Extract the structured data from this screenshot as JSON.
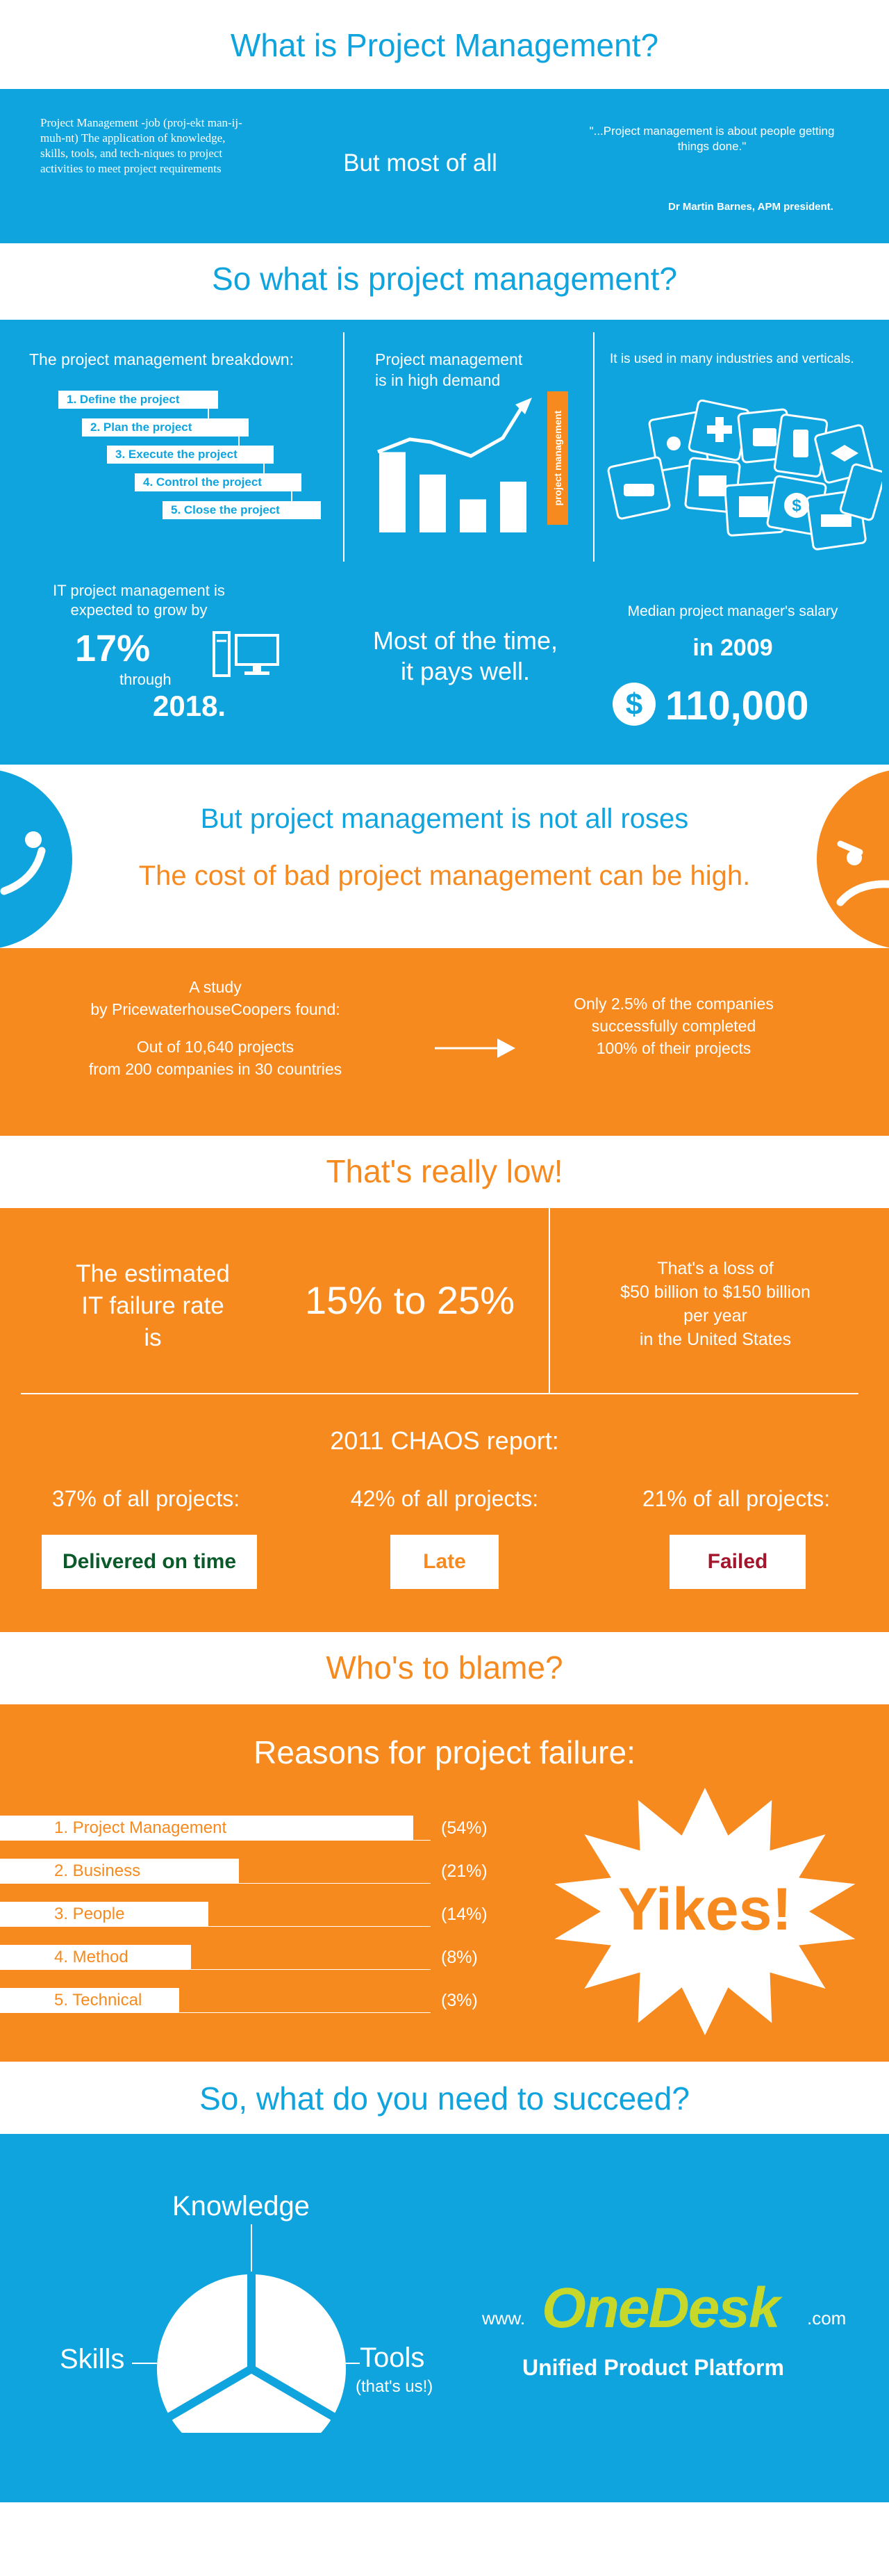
{
  "s1": {
    "title": "What is Project Management?",
    "definition": "Project Management -job (proj-ekt man-ij-muh-nt) The application of knowledge, skills, tools, and tech-niques to project activities to meet project requirements",
    "middle": "But most of all",
    "quote": "\"...Project management is about people getting things done.\"",
    "author": "Dr Martin Barnes, APM president."
  },
  "s2": {
    "title": "So what is project management?",
    "breakdown_heading": "The project management breakdown:",
    "steps": [
      "1. Define the project",
      "2. Plan the project",
      "3. Execute the project",
      "4. Control the project",
      "5. Close the project"
    ],
    "demand_line1": "Project management",
    "demand_line2": "is in high demand",
    "demand_tag": "project management",
    "demand_bars": [
      0.68,
      0.49,
      0.28,
      0.43
    ],
    "industries": "It is used in many industries and verticals.",
    "grow_line1": "IT project management is",
    "grow_line2": "expected to grow by",
    "grow_pct": "17%",
    "through": "through",
    "year": "2018.",
    "pays_line1": "Most of the time,",
    "pays_line2": "it pays well.",
    "salary_label": "Median project manager's salary",
    "salary_year": "in 2009",
    "salary_amount": "110,000"
  },
  "s3": {
    "heading": "But project management is not all roses",
    "sub": "The cost of bad project management can be high.",
    "study_line1": "A study",
    "study_line2": "by PricewaterhouseCoopers found:",
    "projects_line1": "Out of 10,640 projects",
    "projects_line2": "from 200 companies in 30 countries",
    "result_line1": "Only 2.5% of the companies",
    "result_line2": "successfully completed",
    "result_line3": "100% of their projects"
  },
  "s4": {
    "title": "That's really low!",
    "estimated_line1": "The estimated",
    "estimated_line2": "IT failure rate",
    "estimated_line3": "is",
    "rate": "15% to 25%",
    "loss_line1": "That's a loss of",
    "loss_line2": "$50 billion to $150 billion",
    "loss_line3": "per year",
    "loss_line4": "in the United States",
    "chaos_title": "2011 CHAOS report:",
    "chaos": [
      {
        "head": "37% of all projects:",
        "label": "Delivered on time",
        "color": "#0b5a2a"
      },
      {
        "head": "42% of all projects:",
        "label": "Late",
        "color": "#f68a1f"
      },
      {
        "head": "21% of all projects:",
        "label": "Failed",
        "color": "#a4162c"
      }
    ]
  },
  "s5": {
    "title": "Who's to blame?",
    "heading": "Reasons for project failure:",
    "reasons": [
      {
        "label": "1. Project Management",
        "pct": "(54%)",
        "value": 54
      },
      {
        "label": "2. Business",
        "pct": "(21%)",
        "value": 21
      },
      {
        "label": "3. People",
        "pct": "(14%)",
        "value": 14
      },
      {
        "label": "4. Method",
        "pct": "(8%)",
        "value": 8
      },
      {
        "label": "5. Technical",
        "pct": "(3%)",
        "value": 3
      }
    ],
    "yikes": "Yikes!"
  },
  "s6": {
    "title": "So, what do you need to succeed?",
    "knowledge": "Knowledge",
    "skills": "Skills",
    "tools": "Tools",
    "tools_note": "(that's us!)",
    "www": "www.",
    "brand": "OneDesk",
    "dotcom": ".com",
    "tagline": "Unified Product Platform"
  },
  "colors": {
    "blue": "#0fa4de",
    "orange": "#f68a1f",
    "white": "#ffffff"
  }
}
